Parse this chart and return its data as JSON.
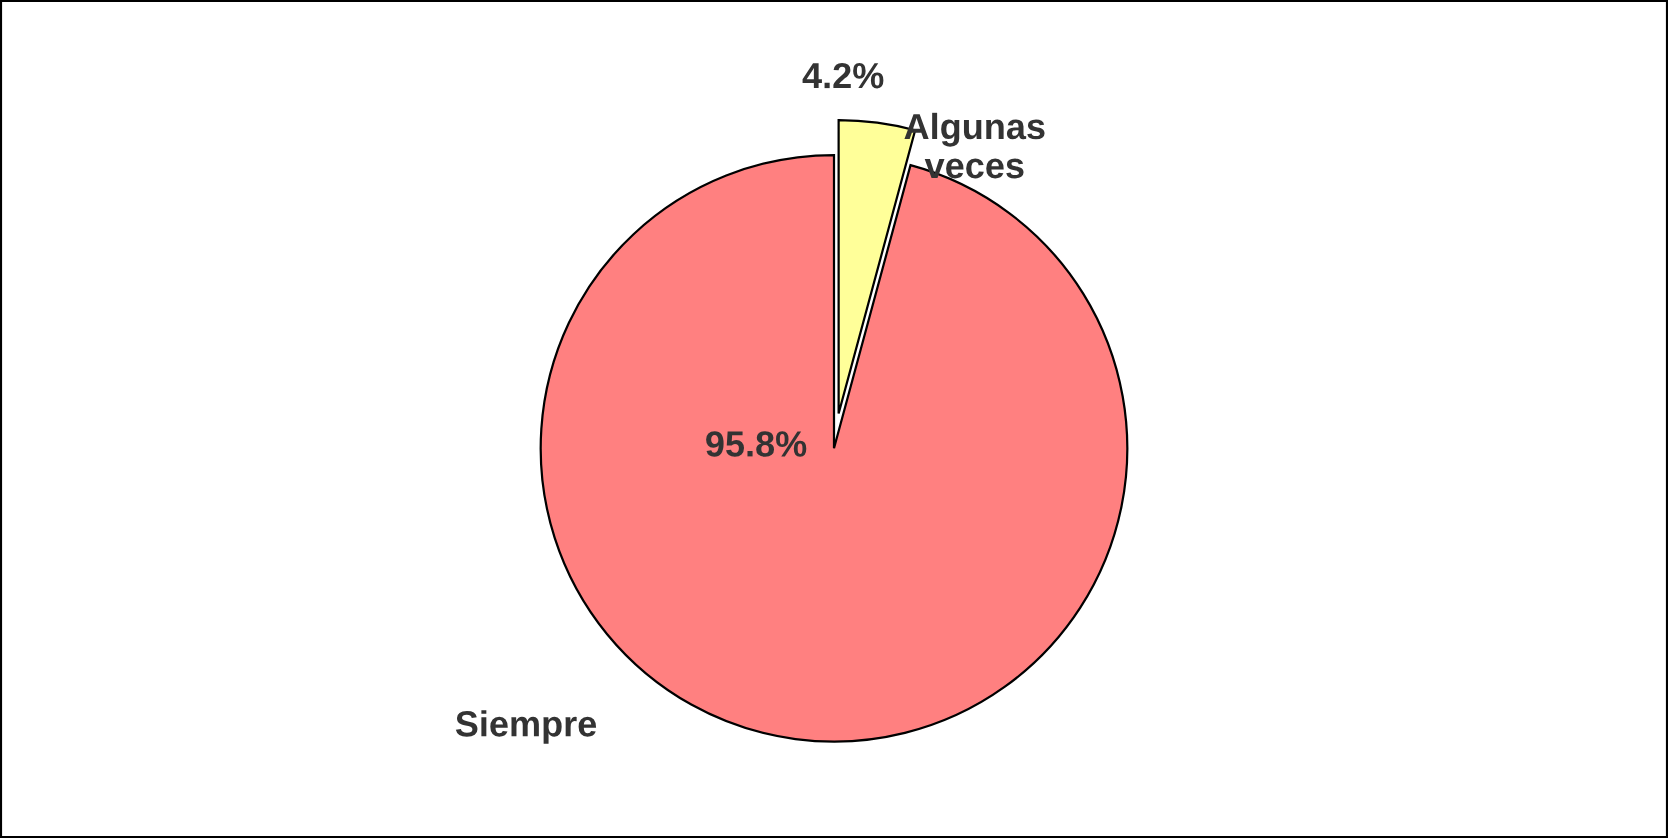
{
  "chart_data": {
    "type": "pie",
    "categories": [
      "Siempre",
      "Algunas veces"
    ],
    "values": [
      95.8,
      4.2
    ],
    "colors": [
      "#ff8080",
      "#ffff99"
    ],
    "value_labels": [
      "95.8%",
      "4.2%"
    ],
    "legend": false
  }
}
